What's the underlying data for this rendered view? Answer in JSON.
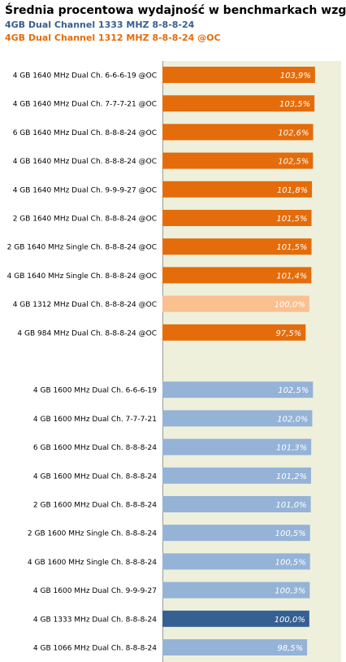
{
  "chart_data": {
    "type": "bar",
    "orientation": "horizontal",
    "title": "Średnia procentowa wydajność w benchmarkach względem:",
    "subtitles": [
      {
        "text": "4GB Dual Channel 1333 MHZ  8-8-8-24",
        "color": "#366092"
      },
      {
        "text": "4GB Dual Channel 1312 MHZ  8-8-8-24 @OC",
        "color": "#e46c0a"
      }
    ],
    "categories": [
      "4 GB 1640 MHz Dual Ch. 6-6-6-19 @OC",
      "4 GB 1640 MHz Dual Ch. 7-7-7-21 @OC",
      "6 GB 1640 MHz Dual Ch. 8-8-8-24 @OC",
      "4 GB 1640 MHz Dual Ch. 8-8-8-24 @OC",
      "4 GB 1640 MHz Dual Ch. 9-9-9-27 @OC",
      "2 GB 1640 MHz Dual Ch. 8-8-8-24 @OC",
      "2 GB 1640 MHz Single Ch. 8-8-8-24 @OC",
      "4 GB 1640 MHz Single Ch. 8-8-8-24 @OC",
      "4 GB 1312 MHz Dual Ch. 8-8-8-24 @OC",
      "4 GB 984 MHz Dual Ch. 8-8-8-24 @OC",
      null,
      "4 GB 1600 MHz Dual Ch. 6-6-6-19",
      "4 GB 1600 MHz Dual Ch. 7-7-7-21",
      "6 GB 1600 MHz Dual Ch. 8-8-8-24",
      "4 GB 1600 MHz Dual Ch. 8-8-8-24",
      "2 GB 1600 MHz Dual Ch. 8-8-8-24",
      "2 GB 1600 MHz Single Ch. 8-8-8-24",
      "4 GB 1600 MHz Single Ch. 8-8-8-24",
      "4 GB 1600 MHz Dual Ch. 9-9-9-27",
      "4 GB 1333 MHz Dual Ch. 8-8-8-24",
      "4 GB 1066 MHz Dual Ch. 8-8-8-24"
    ],
    "values": [
      103.9,
      103.5,
      102.6,
      102.5,
      101.8,
      101.5,
      101.5,
      101.4,
      100.0,
      97.5,
      null,
      102.5,
      102.0,
      101.3,
      101.2,
      101.0,
      100.5,
      100.5,
      100.3,
      100.0,
      98.5
    ],
    "value_labels": [
      "103,9%",
      "103,5%",
      "102,6%",
      "102,5%",
      "101,8%",
      "101,5%",
      "101,5%",
      "101,4%",
      "100,0%",
      "97,5%",
      null,
      "102,5%",
      "102,0%",
      "101,3%",
      "101,2%",
      "101,0%",
      "100,5%",
      "100,5%",
      "100,3%",
      "100,0%",
      "98,5%"
    ],
    "colors": [
      "#e46c0a",
      "#e46c0a",
      "#e46c0a",
      "#e46c0a",
      "#e46c0a",
      "#e46c0a",
      "#e46c0a",
      "#e46c0a",
      "#fac090",
      "#e46c0a",
      null,
      "#95b3d7",
      "#95b3d7",
      "#95b3d7",
      "#95b3d7",
      "#95b3d7",
      "#95b3d7",
      "#95b3d7",
      "#95b3d7",
      "#366092",
      "#95b3d7"
    ],
    "xlim": [
      0,
      120
    ]
  }
}
